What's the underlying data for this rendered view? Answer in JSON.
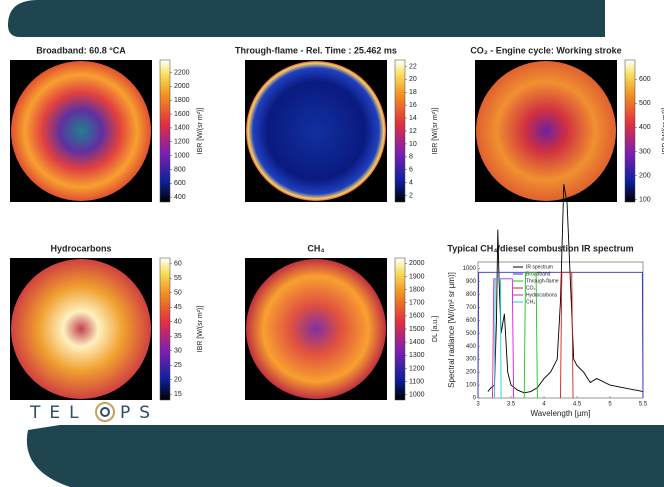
{
  "heatmaps": [
    {
      "title": "Broadband:  60.8 °CA",
      "clabel": "IBR [W/(sr m²)]",
      "clim": [
        330,
        2380
      ],
      "cticks": [
        400,
        600,
        800,
        1000,
        1200,
        1400,
        1600,
        1800,
        2000,
        2200
      ]
    },
    {
      "title": "Through-flame - Rel. Time : 25.462 ms",
      "clabel": "IBR [W/(sr m²)]",
      "clim": [
        1,
        23
      ],
      "cticks": [
        2,
        4,
        6,
        8,
        10,
        12,
        14,
        16,
        18,
        20,
        22
      ]
    },
    {
      "title": "CO₂ - Engine cycle: Working stroke",
      "clabel": "IBR [W/(sr m²)]",
      "clim": [
        90,
        680
      ],
      "cticks": [
        100,
        200,
        300,
        400,
        500,
        600
      ]
    },
    {
      "title": "Hydrocarbons",
      "clabel": "IBR [W/(sr m²)]",
      "clim": [
        13,
        62
      ],
      "cticks": [
        15,
        20,
        25,
        30,
        35,
        40,
        45,
        50,
        55,
        60
      ]
    },
    {
      "title": "CH₄",
      "clabel": "DL [a.u.]",
      "clim": [
        960,
        2040
      ],
      "cticks": [
        1000,
        1100,
        1200,
        1300,
        1400,
        1500,
        1600,
        1700,
        1800,
        1900,
        2000
      ]
    }
  ],
  "logo": {
    "left": "TEL",
    "right": "PS"
  },
  "chart_data": {
    "type": "line",
    "title": "Typical CH₄/diesel combustion IR spectrum",
    "xlabel": "Wavelength [µm]",
    "ylabel": "Spectral radiance [W/(m² sr µm)]",
    "xlim": [
      3,
      5.5
    ],
    "xticks": [
      3,
      3.5,
      4,
      4.5,
      5,
      5.5
    ],
    "ylim": [
      0,
      1050
    ],
    "yticks": [
      0,
      100,
      200,
      300,
      400,
      500,
      600,
      700,
      800,
      900,
      1000
    ],
    "series": [
      {
        "name": "IR spectrum",
        "color": "#000000",
        "x": [
          3.15,
          3.2,
          3.25,
          3.28,
          3.3,
          3.32,
          3.35,
          3.4,
          3.45,
          3.5,
          3.6,
          3.7,
          3.8,
          3.9,
          4.0,
          4.1,
          4.2,
          4.25,
          4.3,
          4.35,
          4.4,
          4.45,
          4.5,
          4.6,
          4.7,
          4.8,
          5.0,
          5.2,
          5.4,
          5.5
        ],
        "values": [
          50,
          80,
          100,
          600,
          1300,
          900,
          500,
          650,
          200,
          100,
          60,
          40,
          50,
          80,
          150,
          200,
          300,
          750,
          1650,
          1500,
          900,
          300,
          250,
          200,
          120,
          150,
          100,
          80,
          60,
          50
        ]
      },
      {
        "name": "Broadband",
        "color": "#3030c0",
        "x": [
          3.0,
          3.01,
          5.49,
          5.5
        ],
        "values": [
          0,
          970,
          970,
          0
        ]
      },
      {
        "name": "Through-flame",
        "color": "#20c020",
        "x": [
          3.7,
          3.72,
          3.88,
          3.9
        ],
        "values": [
          0,
          970,
          970,
          0
        ]
      },
      {
        "name": "CO₂",
        "color": "#d02020",
        "x": [
          4.25,
          4.27,
          4.42,
          4.44
        ],
        "values": [
          0,
          970,
          970,
          0
        ]
      },
      {
        "name": "Hydrocarbons",
        "color": "#d020d0",
        "x": [
          3.22,
          3.24,
          3.52,
          3.54
        ],
        "values": [
          0,
          920,
          920,
          0
        ]
      },
      {
        "name": "CH₄",
        "color": "#20c8d8",
        "x": [
          3.25,
          3.26,
          3.34,
          3.35
        ],
        "values": [
          0,
          920,
          920,
          0
        ]
      }
    ]
  }
}
